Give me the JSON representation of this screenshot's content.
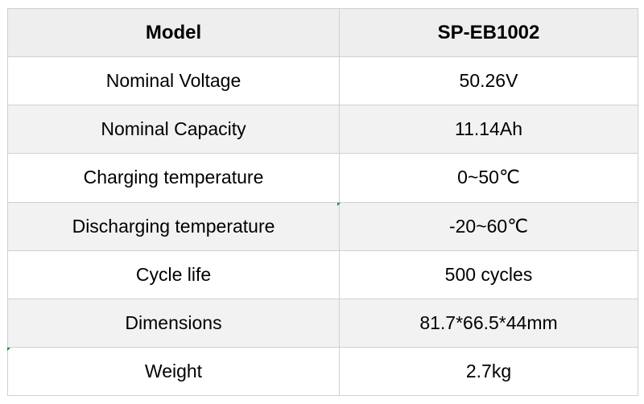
{
  "table": {
    "header": {
      "param": "Model",
      "value": "SP-EB1002"
    },
    "rows": [
      {
        "param": "Nominal Voltage",
        "value": "50.26V"
      },
      {
        "param": "Nominal Capacity",
        "value": "11.14Ah"
      },
      {
        "param": "Charging temperature",
        "value": "0~50℃"
      },
      {
        "param": "Discharging temperature",
        "value": "-20~60℃"
      },
      {
        "param": "Cycle life",
        "value": "500 cycles"
      },
      {
        "param": "Dimensions",
        "value": "81.7*66.5*44mm"
      },
      {
        "param": "Weight",
        "value": "2.7kg"
      }
    ]
  }
}
